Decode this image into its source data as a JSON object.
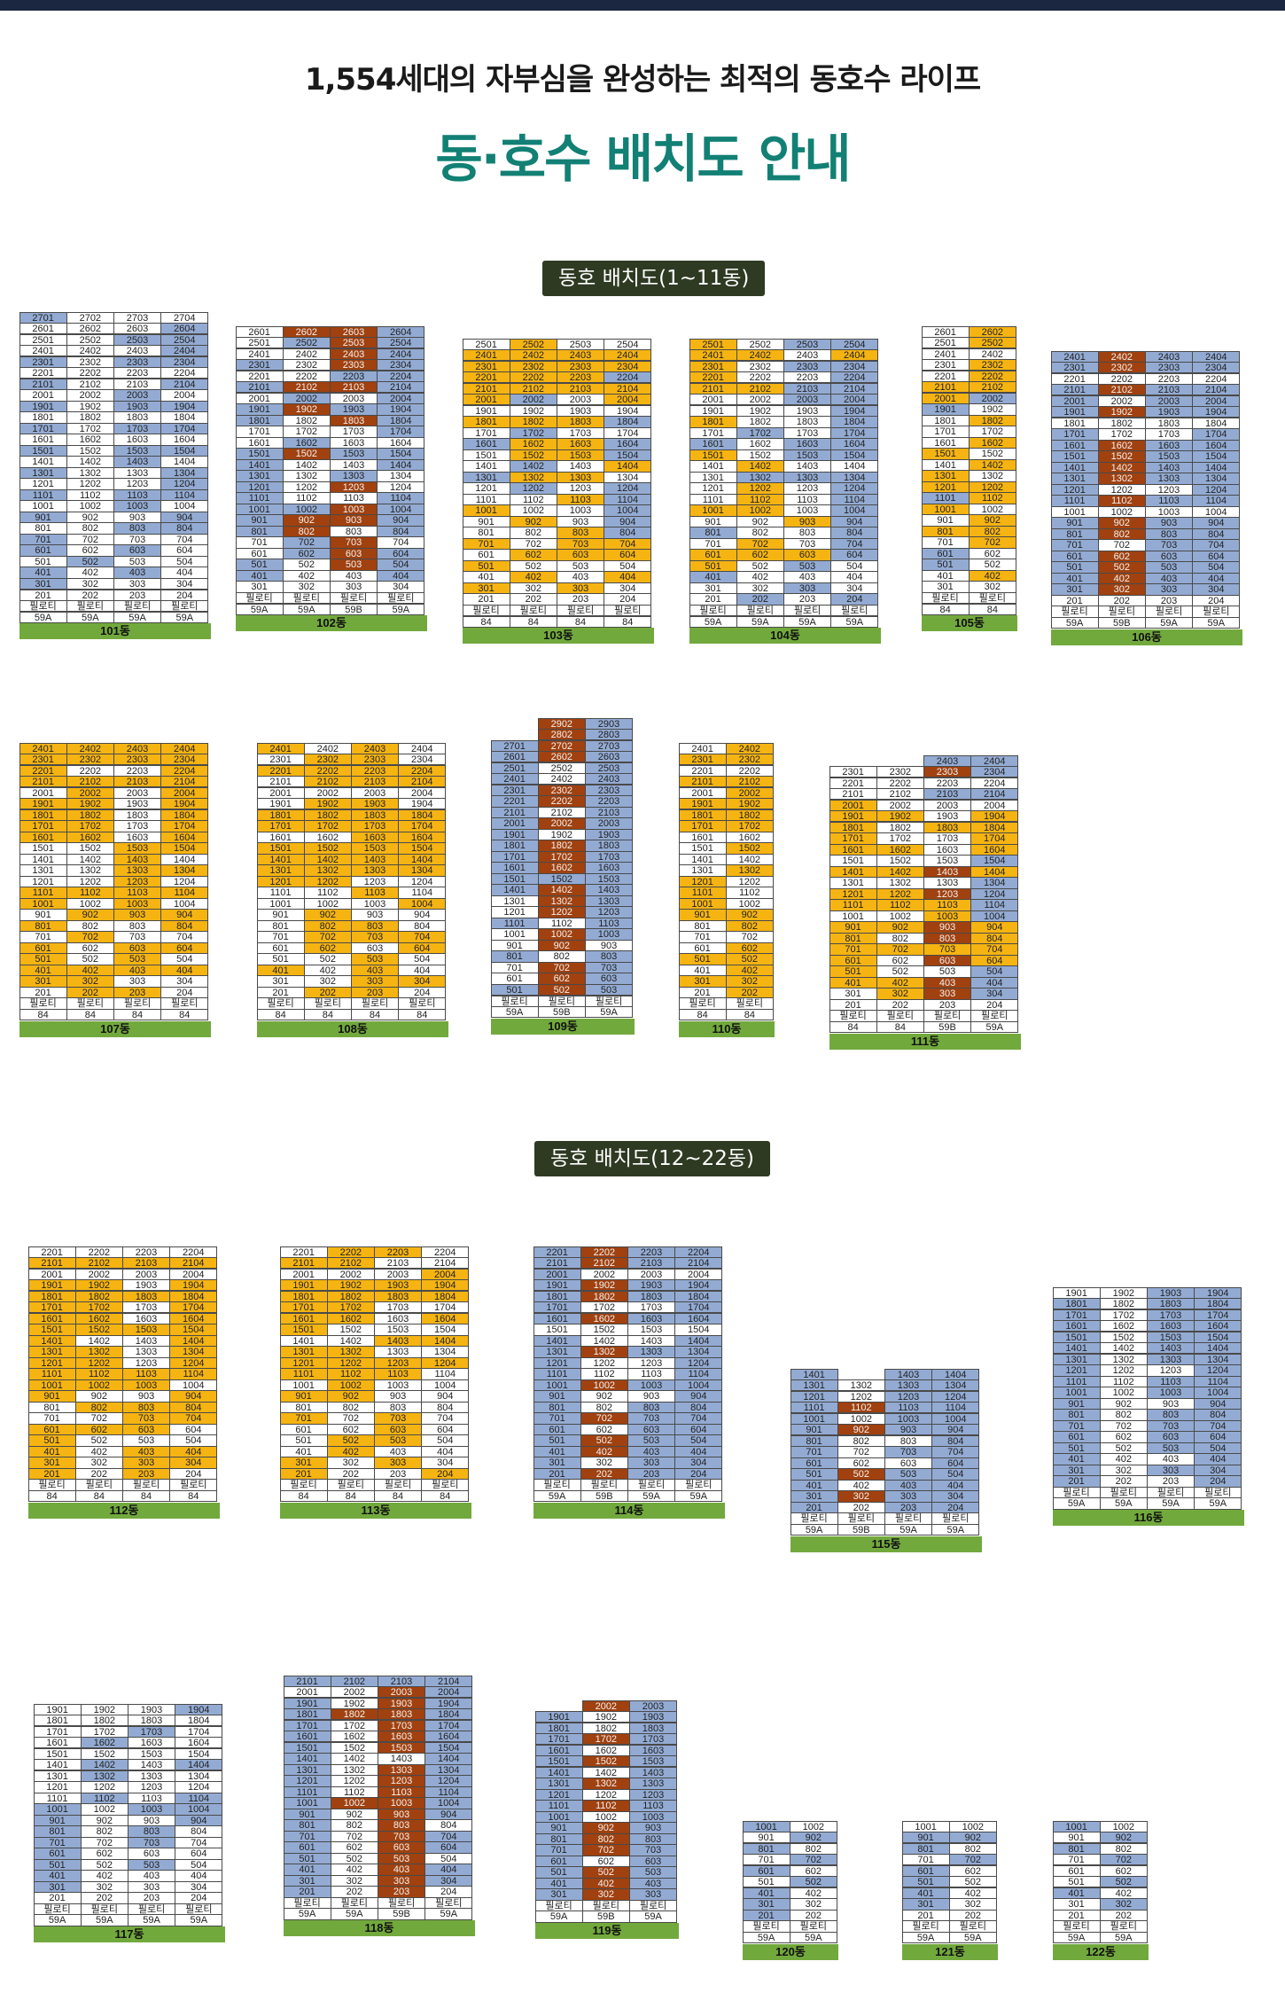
{
  "header": {
    "subtitle": "1,554세대의 자부심을 완성하는 최적의 동호수 라이프",
    "title": "동·호수 배치도 안내"
  },
  "sections": [
    {
      "label": "동호 배치도(1~11동)"
    },
    {
      "label": "동호 배치도(12~22동)"
    }
  ],
  "legend_colors": {
    "blue": "#93abd3",
    "yellow": "#f6b412",
    "brown": "#a0410f",
    "white": "#ffffff",
    "building_label_bg": "#72a93d"
  },
  "buildings": [
    {
      "name": "101동",
      "ncols": 4,
      "rows": [
        [
          "2701",
          "b",
          " 2702",
          "",
          " 2703",
          "",
          " 2704",
          "b"
        ]
      ],
      "grid": "b,,,b|,,,b|,,b,b|b,,,|b,,b,b|,,,|b,,,b|,,b,|b,,b,b|,,,|b,,b,|,,,|b,,,b|,,b,|b,,,b|,,,b|b,,b,b|,,b,|b,,,|,,,|b,,,|b,,b,|,,,|b,,b,",
      "cells": [
        "2701",
        "2702",
        "2703",
        "2704",
        "2601",
        "2602",
        "2603",
        "2604",
        "2501",
        "2502",
        "2503",
        "2504",
        "2401",
        "2402",
        "2403",
        "2404",
        "2301",
        "2302",
        "2303",
        "2304",
        "2201",
        "2202",
        "2203",
        "2204",
        "2101",
        "2102",
        "2103",
        "2104",
        "2001",
        "2002",
        "2003",
        "2004",
        "1901",
        "1902",
        "1903",
        "1904",
        "1801",
        "1802",
        "1803",
        "1804",
        "1701",
        "1702",
        "1703",
        "1704",
        "1601",
        "1602",
        "1603",
        "1604",
        "1501",
        "1502",
        "1503",
        "1504",
        "1401",
        "1402",
        "1403",
        "1404",
        "1301",
        "1302",
        "1303",
        "1304",
        "1201",
        "1202",
        "1203",
        "1204",
        "1101",
        "1102",
        "1103",
        "1104",
        "1001",
        "1002",
        "1003",
        "1004",
        "901",
        "902",
        "903",
        "904",
        "801",
        "802",
        "803",
        "804",
        "701",
        "702",
        "703",
        "704",
        "601",
        "602",
        "603",
        "604",
        "501",
        "502",
        "503",
        "504",
        "401",
        "402",
        "403",
        "404",
        "301",
        "302",
        "303",
        "304",
        "201",
        "202",
        "203",
        "204",
        "필로티",
        "필로티",
        "필로티",
        "필로티"
      ],
      "types": [
        "59A",
        "59A",
        "59A",
        "59A"
      ]
    }
  ]
}
